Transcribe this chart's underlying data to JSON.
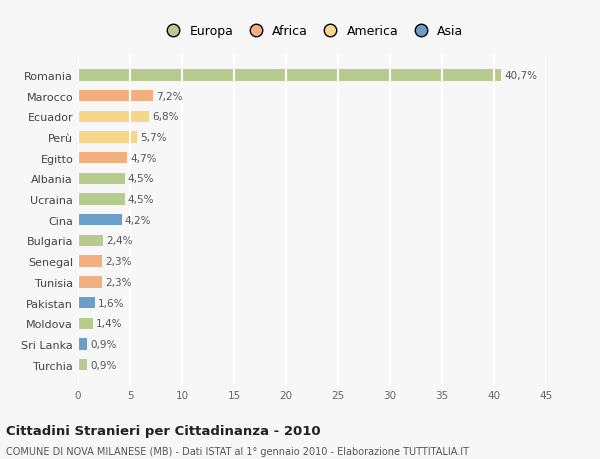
{
  "countries": [
    "Romania",
    "Marocco",
    "Ecuador",
    "Perù",
    "Egitto",
    "Albania",
    "Ucraina",
    "Cina",
    "Bulgaria",
    "Senegal",
    "Tunisia",
    "Pakistan",
    "Moldova",
    "Sri Lanka",
    "Turchia"
  ],
  "values": [
    40.7,
    7.2,
    6.8,
    5.7,
    4.7,
    4.5,
    4.5,
    4.2,
    2.4,
    2.3,
    2.3,
    1.6,
    1.4,
    0.9,
    0.9
  ],
  "labels": [
    "40,7%",
    "7,2%",
    "6,8%",
    "5,7%",
    "4,7%",
    "4,5%",
    "4,5%",
    "4,2%",
    "2,4%",
    "2,3%",
    "2,3%",
    "1,6%",
    "1,4%",
    "0,9%",
    "0,9%"
  ],
  "categories": [
    "Europa",
    "Africa",
    "America",
    "America",
    "Africa",
    "Europa",
    "Europa",
    "Asia",
    "Europa",
    "Africa",
    "Africa",
    "Asia",
    "Europa",
    "Asia",
    "Europa"
  ],
  "colors": {
    "Europa": "#b5cc8e",
    "Africa": "#f2b080",
    "America": "#f7d58b",
    "Asia": "#6b9ec8"
  },
  "legend_labels": [
    "Europa",
    "Africa",
    "America",
    "Asia"
  ],
  "legend_colors": [
    "#b5cc8e",
    "#f2b080",
    "#f7d58b",
    "#6b9ec8"
  ],
  "xlim": [
    0,
    45
  ],
  "xticks": [
    0,
    5,
    10,
    15,
    20,
    25,
    30,
    35,
    40,
    45
  ],
  "title": "Cittadini Stranieri per Cittadinanza - 2010",
  "subtitle": "COMUNE DI NOVA MILANESE (MB) - Dati ISTAT al 1° gennaio 2010 - Elaborazione TUTTITALIA.IT",
  "background_color": "#f7f7f7",
  "grid_color": "#ffffff",
  "bar_height": 0.55
}
